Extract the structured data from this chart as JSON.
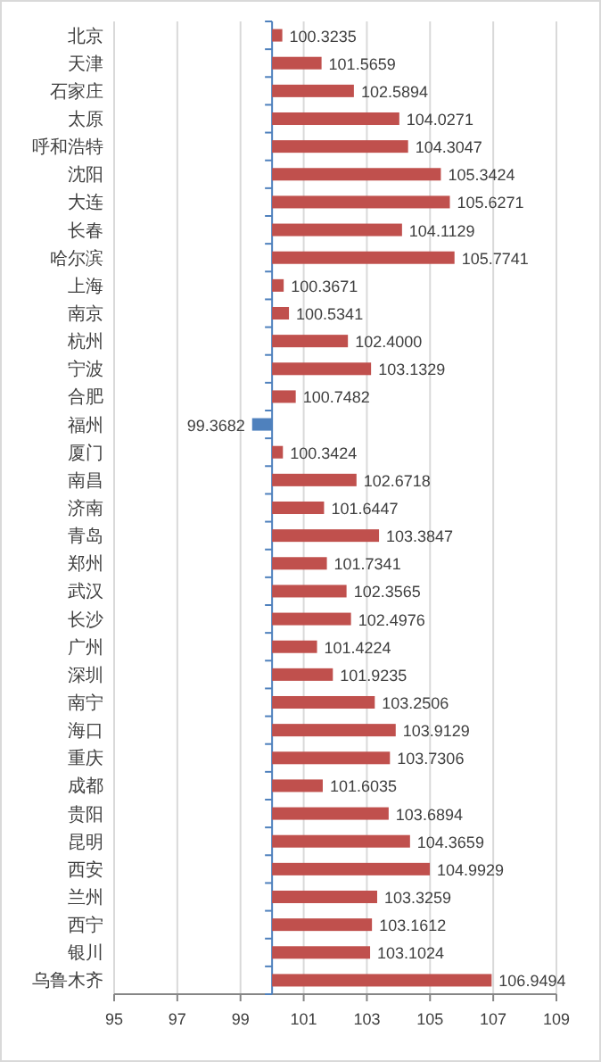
{
  "chart_data": {
    "type": "bar",
    "orientation": "horizontal",
    "categories": [
      "北京",
      "天津",
      "石家庄",
      "太原",
      "呼和浩特",
      "沈阳",
      "大连",
      "长春",
      "哈尔滨",
      "上海",
      "南京",
      "杭州",
      "宁波",
      "合肥",
      "福州",
      "厦门",
      "南昌",
      "济南",
      "青岛",
      "郑州",
      "武汉",
      "长沙",
      "广州",
      "深圳",
      "南宁",
      "海口",
      "重庆",
      "成都",
      "贵阳",
      "昆明",
      "西安",
      "兰州",
      "西宁",
      "银川",
      "乌鲁木齐"
    ],
    "base": [
      100,
      100,
      100,
      100,
      100,
      100,
      100,
      100,
      100,
      100,
      100,
      100,
      100,
      100,
      100,
      100,
      100,
      100,
      100,
      100,
      100,
      100,
      100,
      100,
      100,
      100,
      100,
      100,
      100,
      100,
      100,
      100,
      100,
      100,
      100
    ],
    "values": [
      0.3235,
      1.5659,
      2.5894,
      4.0271,
      4.3047,
      5.3424,
      5.6271,
      4.1129,
      5.7741,
      0.3671,
      0.5341,
      2.4,
      3.1329,
      0.7482,
      -0.6318,
      0.3424,
      2.6718,
      1.6447,
      3.3847,
      1.7341,
      2.3565,
      2.4976,
      1.4224,
      1.9235,
      3.2506,
      3.9129,
      3.7306,
      1.6035,
      3.6894,
      4.3659,
      4.9929,
      3.3259,
      3.1612,
      3.1024,
      6.9494
    ],
    "value_labels": [
      "100.3235",
      "101.5659",
      "102.5894",
      "104.0271",
      "104.3047",
      "105.3424",
      "105.6271",
      "104.1129",
      "105.7741",
      "100.3671",
      "100.5341",
      "102.4000",
      "103.1329",
      "100.7482",
      "99.3682",
      "100.3424",
      "102.6718",
      "101.6447",
      "103.3847",
      "101.7341",
      "102.3565",
      "102.4976",
      "101.4224",
      "101.9235",
      "103.2506",
      "103.9129",
      "103.7306",
      "101.6035",
      "103.6894",
      "104.3659",
      "104.9929",
      "103.3259",
      "103.1612",
      "103.1024",
      "106.9494"
    ],
    "colors": [
      "#c0504d",
      "#c0504d",
      "#c0504d",
      "#c0504d",
      "#c0504d",
      "#c0504d",
      "#c0504d",
      "#c0504d",
      "#c0504d",
      "#c0504d",
      "#c0504d",
      "#c0504d",
      "#c0504d",
      "#c0504d",
      "#4f81bd",
      "#c0504d",
      "#c0504d",
      "#c0504d",
      "#c0504d",
      "#c0504d",
      "#c0504d",
      "#c0504d",
      "#c0504d",
      "#c0504d",
      "#c0504d",
      "#c0504d",
      "#c0504d",
      "#c0504d",
      "#c0504d",
      "#c0504d",
      "#c0504d",
      "#c0504d",
      "#c0504d",
      "#c0504d",
      "#c0504d"
    ],
    "ref_lines": [
      {
        "axis": "x",
        "value": 100,
        "color": "#4f81bd"
      }
    ],
    "xlim": [
      95,
      109
    ],
    "xticks": [
      95,
      97,
      99,
      101,
      103,
      105,
      107,
      109
    ],
    "grid": "x"
  }
}
